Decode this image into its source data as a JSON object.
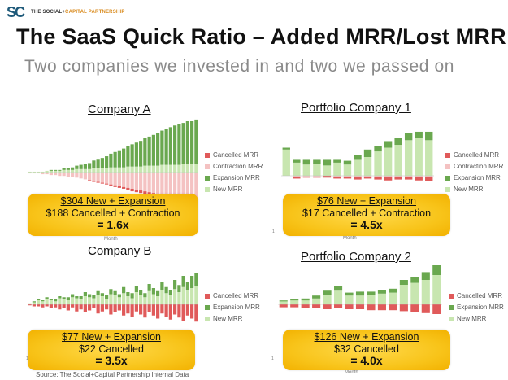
{
  "logo": {
    "mark": "SC",
    "text_a": "THE SOCIAL+",
    "text_b": "CAPITAL PARTNERSHIP"
  },
  "title": "The SaaS Quick Ratio – Added MRR/Lost MRR",
  "subtitle": "Two companies we invested in and two we passed on",
  "colors": {
    "new": "#c8e6b0",
    "expansion": "#6aa84f",
    "contraction": "#f4c2c2",
    "cancelled": "#e05a5a",
    "callout": "#f8c41a"
  },
  "source": "Source: The Social+Capital Partnership Internal Data",
  "panels": [
    {
      "title": "Company A",
      "legend": [
        "Cancelled MRR",
        "Contraction MRR",
        "Expansion MRR",
        "New MRR"
      ],
      "callout": [
        "$304 New + Expansion",
        "$188 Cancelled + Contraction",
        "= 1.6x"
      ],
      "xlabel": "Month",
      "tick": ""
    },
    {
      "title": "Portfolio Company 1",
      "legend": [
        "Cancelled MRR",
        "Contraction MRR",
        "Expansion MRR",
        "New MRR"
      ],
      "callout": [
        "$76 New + Expansion",
        "$17 Cancelled + Contraction",
        "= 4.5x"
      ],
      "xlabel": "Month",
      "tick": "1"
    },
    {
      "title": "Company B",
      "legend": [
        "Cancelled MRR",
        "Expansion MRR",
        "New MRR"
      ],
      "callout": [
        "$77 New + Expansion",
        "$22 Cancelled",
        "= 3.5x"
      ],
      "xlabel": "",
      "tick": "1"
    },
    {
      "title": "Portfolio Company 2",
      "legend": [
        "Cancelled MRR",
        "Expansion MRR",
        "New MRR"
      ],
      "callout": [
        "$126 New + Expansion",
        "$32 Cancelled",
        "= 4.0x"
      ],
      "xlabel": "Month",
      "tick": "1"
    }
  ],
  "chart_data": [
    {
      "type": "bar",
      "stacked": true,
      "title": "Company A",
      "series": [
        {
          "name": "New MRR",
          "values": [
            1,
            1,
            1,
            1,
            2,
            2,
            2,
            2,
            3,
            3,
            3,
            4,
            4,
            4,
            4,
            5,
            5,
            5,
            5,
            6,
            6,
            6,
            6,
            7,
            7,
            7,
            7,
            8,
            8,
            8,
            8,
            9,
            9,
            9,
            9,
            9,
            10,
            10,
            10,
            10
          ]
        },
        {
          "name": "Expansion MRR",
          "values": [
            0,
            0,
            0,
            0,
            0,
            1,
            1,
            1,
            2,
            2,
            3,
            4,
            5,
            6,
            7,
            9,
            10,
            12,
            14,
            16,
            18,
            20,
            22,
            24,
            26,
            28,
            30,
            32,
            34,
            36,
            38,
            40,
            42,
            44,
            46,
            48,
            48,
            50,
            50,
            52
          ]
        },
        {
          "name": "Contraction MRR",
          "values": [
            -1,
            -1,
            -1,
            -2,
            -2,
            -3,
            -3,
            -4,
            -4,
            -5,
            -5,
            -6,
            -7,
            -8,
            -9,
            -10,
            -11,
            -12,
            -13,
            -14,
            -15,
            -16,
            -17,
            -18,
            -19,
            -20,
            -21,
            -22,
            -23,
            -24,
            -25,
            -26,
            -27,
            -28,
            -29,
            -30,
            -30,
            -31,
            -31,
            -32
          ]
        },
        {
          "name": "Cancelled MRR",
          "values": [
            0,
            0,
            0,
            0,
            0,
            0,
            0,
            0,
            0,
            0,
            0,
            0,
            0,
            0,
            -1,
            -1,
            -1,
            -1,
            -1,
            -2,
            -2,
            -2,
            -2,
            -2,
            -3,
            -3,
            -3,
            -3,
            -3,
            -4,
            -4,
            -4,
            -4,
            -4,
            -5,
            -5,
            -5,
            -5,
            -6,
            -6
          ]
        }
      ]
    },
    {
      "type": "bar",
      "stacked": true,
      "title": "Portfolio Company 1",
      "series": [
        {
          "name": "New MRR",
          "values": [
            28,
            14,
            12,
            13,
            11,
            14,
            12,
            17,
            20,
            26,
            30,
            33,
            38,
            40,
            38
          ]
        },
        {
          "name": "Expansion MRR",
          "values": [
            2,
            3,
            5,
            4,
            6,
            3,
            4,
            5,
            8,
            6,
            7,
            7,
            8,
            7,
            9
          ]
        },
        {
          "name": "Contraction MRR",
          "values": [
            0,
            -1,
            -1,
            -1,
            0,
            -1,
            -1,
            -1,
            -1,
            -1,
            -1,
            -1,
            -1,
            -1,
            -1
          ]
        },
        {
          "name": "Cancelled MRR",
          "values": [
            0,
            -2,
            -1,
            -1,
            -2,
            -2,
            -2,
            -3,
            -2,
            -3,
            -4,
            -3,
            -3,
            -4,
            -5
          ]
        }
      ]
    },
    {
      "type": "bar",
      "stacked": true,
      "title": "Company B",
      "series": [
        {
          "name": "New MRR",
          "values": [
            1,
            2,
            4,
            3,
            5,
            4,
            3,
            6,
            5,
            4,
            7,
            6,
            5,
            8,
            7,
            6,
            9,
            8,
            5,
            10,
            9,
            7,
            11,
            8,
            6,
            12,
            9,
            7,
            13,
            10,
            8,
            14,
            11,
            9,
            15,
            12,
            17,
            14,
            16,
            18
          ]
        },
        {
          "name": "Expansion MRR",
          "values": [
            0,
            1,
            1,
            1,
            2,
            1,
            2,
            2,
            2,
            3,
            3,
            2,
            3,
            4,
            3,
            3,
            4,
            3,
            4,
            5,
            4,
            3,
            6,
            4,
            5,
            6,
            5,
            4,
            7,
            6,
            5,
            8,
            6,
            5,
            9,
            7,
            11,
            8,
            12,
            13
          ]
        },
        {
          "name": "Cancelled MRR",
          "values": [
            -1,
            -2,
            -2,
            -3,
            -2,
            -4,
            -3,
            -5,
            -4,
            -6,
            -3,
            -7,
            -5,
            -8,
            -6,
            -4,
            -9,
            -7,
            -5,
            -10,
            -8,
            -6,
            -11,
            -9,
            -12,
            -7,
            -10,
            -13,
            -8,
            -11,
            -14,
            -9,
            -12,
            -15,
            -10,
            -13,
            -16,
            -11,
            -14,
            -17
          ]
        }
      ]
    },
    {
      "type": "bar",
      "stacked": true,
      "title": "Portfolio Company 2",
      "series": [
        {
          "name": "New MRR",
          "values": [
            3,
            4,
            4,
            6,
            10,
            14,
            9,
            9,
            10,
            11,
            12,
            20,
            22,
            25,
            30
          ]
        },
        {
          "name": "Expansion MRR",
          "values": [
            1,
            1,
            2,
            3,
            4,
            5,
            3,
            4,
            3,
            4,
            4,
            5,
            6,
            8,
            10
          ]
        },
        {
          "name": "Cancelled MRR",
          "values": [
            -3,
            -3,
            -4,
            -4,
            -5,
            -4,
            -5,
            -5,
            -6,
            -6,
            -6,
            -7,
            -8,
            -9,
            -10
          ]
        }
      ]
    }
  ]
}
